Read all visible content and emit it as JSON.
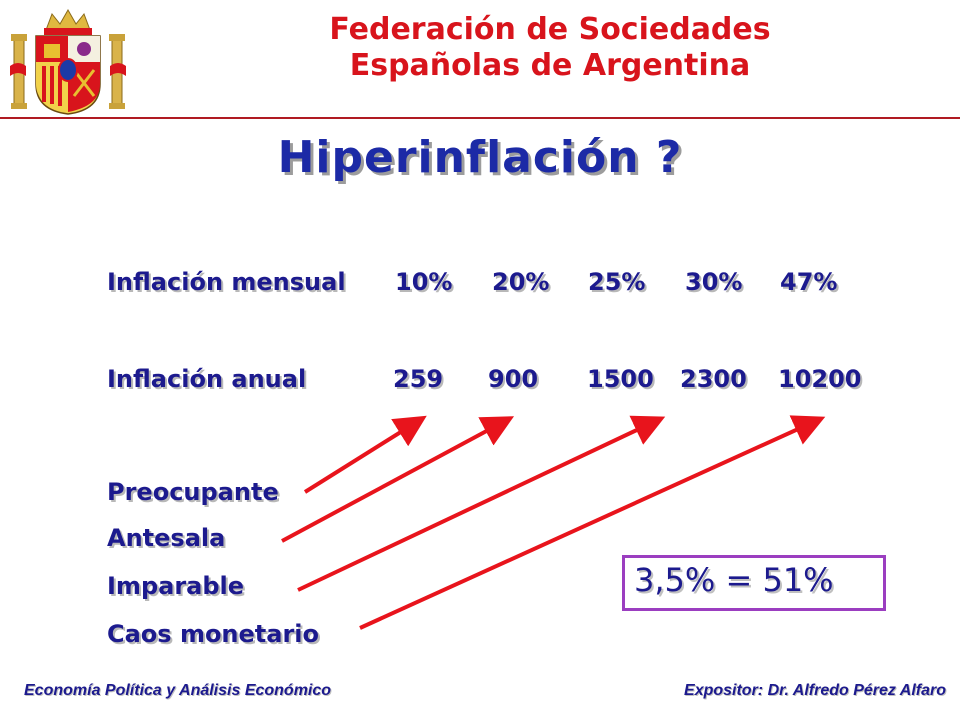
{
  "header": {
    "org_line1": "Federación de Sociedades",
    "org_line2": "Españolas de Argentina"
  },
  "title": "Hiperinflación ?",
  "monthly": {
    "label": "Inflación mensual",
    "values": [
      "10%",
      "20%",
      "25%",
      "30%",
      "47%"
    ]
  },
  "annual": {
    "label": "Inflación anual",
    "values": [
      "259",
      "900",
      "1500",
      "2300",
      "10200"
    ]
  },
  "levels": [
    "Preocupante",
    "Antesala",
    "Imparable",
    "Caos monetario"
  ],
  "note": "3,5% = 51%",
  "footer": {
    "left": "Economía Política y Análisis Económico",
    "right": "Expositor: Dr. Alfredo Pérez Alfaro"
  },
  "colors": {
    "header_red": "#d8141c",
    "title_blue": "#1c2aa6",
    "text_navy": "#1c1a8e",
    "arrow_red": "#e8141c",
    "box_purple": "#9b3ec0"
  }
}
